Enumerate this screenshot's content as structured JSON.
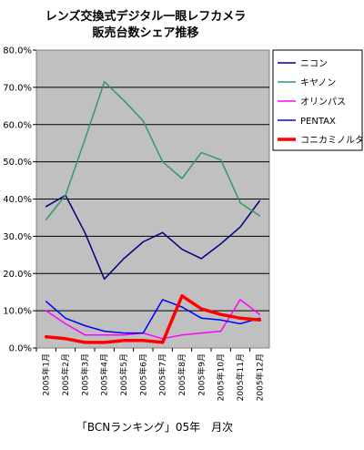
{
  "chart_data": {
    "type": "line",
    "title": [
      "レンズ交換式デジタル一眼レフカメラ",
      "販売台数シェア推移"
    ],
    "xlabel": "「BCNランキング」05年　月次",
    "ylabel": "",
    "ylim": [
      0,
      80
    ],
    "y_ticks": [
      "0.0%",
      "10.0%",
      "20.0%",
      "30.0%",
      "40.0%",
      "50.0%",
      "60.0%",
      "70.0%",
      "80.0%"
    ],
    "categories": [
      "2005年1月",
      "2005年2月",
      "2005年3月",
      "2005年4月",
      "2005年5月",
      "2005年6月",
      "2005年7月",
      "2005年8月",
      "2005年9月",
      "2005年10月",
      "2005年11月",
      "2005年12月"
    ],
    "grid": true,
    "legend_position": "right",
    "series": [
      {
        "name": "ニコン",
        "color": "#000080",
        "width": 1.5,
        "values": [
          38,
          41,
          31,
          18.5,
          24,
          28.5,
          31,
          26.5,
          24,
          28,
          32.5,
          39.5
        ]
      },
      {
        "name": "キヤノン",
        "color": "#339966",
        "width": 1.5,
        "values": [
          34.5,
          41,
          56,
          71.5,
          66.5,
          61,
          50,
          45.5,
          52.5,
          50.5,
          39,
          35.5
        ]
      },
      {
        "name": "オリンパス",
        "color": "#ff00ff",
        "width": 1.5,
        "values": [
          10,
          6.5,
          3.5,
          3.5,
          3.5,
          4,
          2.5,
          3.5,
          4,
          4.5,
          13,
          9
        ]
      },
      {
        "name": "PENTAX",
        "color": "#0000ff",
        "width": 1.5,
        "values": [
          12.5,
          8,
          6,
          4.5,
          4,
          4,
          13,
          11,
          8,
          7.5,
          6.5,
          8
        ]
      },
      {
        "name": "コニカミノルタ",
        "color": "#ff0000",
        "width": 3.5,
        "values": [
          3,
          2.5,
          1.5,
          1.5,
          2,
          2,
          1.5,
          14,
          10.5,
          9,
          8,
          7.5
        ]
      }
    ]
  }
}
